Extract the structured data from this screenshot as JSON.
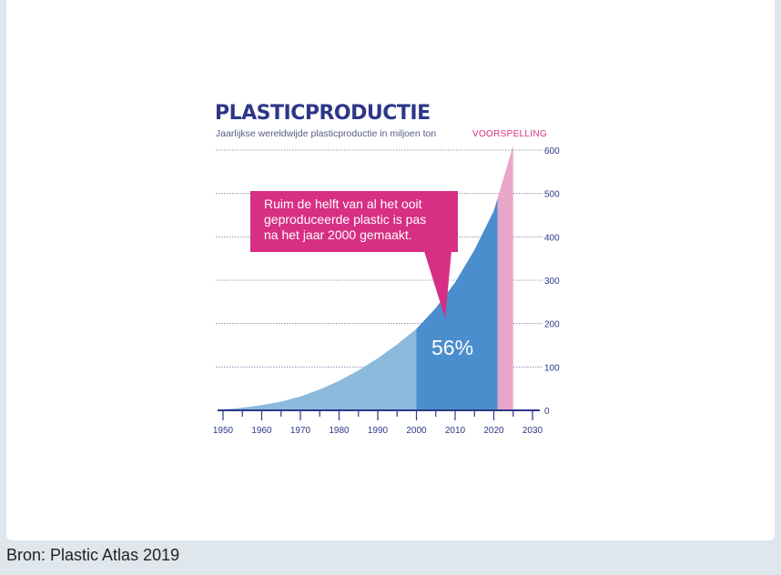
{
  "caption": "Bron: Plastic Atlas 2019",
  "chart_data": {
    "type": "area",
    "title": "PLASTICPRODUCTIE",
    "subtitle": "Jaarlijkse wereldwijde plasticproductie in miljoen ton",
    "forecast_label": "VOORSPELLING",
    "callout": [
      "Ruim de helft van al het ooit",
      "geproduceerde plastic is pas",
      "na het jaar 2000 gemaakt."
    ],
    "share_label": "56%",
    "x": [
      1950,
      1955,
      1960,
      1965,
      1970,
      1975,
      1980,
      1985,
      1990,
      1995,
      2000,
      2005,
      2010,
      2015,
      2020,
      2025
    ],
    "values": [
      2,
      6,
      12,
      20,
      32,
      48,
      68,
      92,
      120,
      152,
      188,
      236,
      295,
      370,
      460,
      610
    ],
    "segments": [
      {
        "from": 1950,
        "to": 2000,
        "color": "#8cbadd"
      },
      {
        "from": 2000,
        "to": 2021,
        "color": "#4a8ecd"
      },
      {
        "from": 2021,
        "to": 2025,
        "color": "#e8a6c8"
      }
    ],
    "xlim": [
      1950,
      2030
    ],
    "ylim": [
      0,
      600
    ],
    "x_ticks": [
      "1950",
      "1960",
      "1970",
      "1980",
      "1990",
      "2000",
      "2010",
      "2020",
      "2030"
    ],
    "y_ticks": [
      "0",
      "100",
      "200",
      "300",
      "400",
      "500",
      "600"
    ],
    "grid": true,
    "axis_color": "#2d3788",
    "accent_color": "#d62f83"
  }
}
